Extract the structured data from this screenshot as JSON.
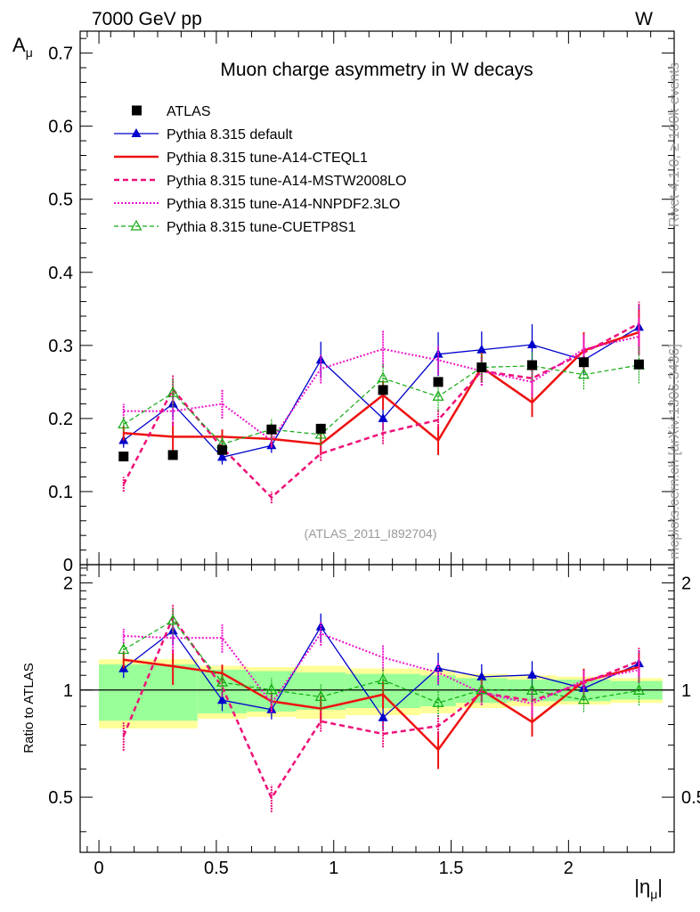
{
  "header": {
    "left": "7000 GeV pp",
    "right": "W"
  },
  "side_labels": {
    "rivet": "Rivet 4.1.0, ≥ 100k events",
    "mcplots": "mcplots.cern.ch [arXiv:1306.3436]"
  },
  "chart_data": {
    "type": "line",
    "title": "Muon charge asymmetry in W decays",
    "analysis_id": "(ATLAS_2011_I892704)",
    "ylabel": "A",
    "ylabel_sub": "μ",
    "xlabel": "|η",
    "xlabel_sub": "μ",
    "xlabel_tail": "|",
    "ratio_ylabel": "Ratio to ATLAS",
    "xlim": [
      -0.08,
      2.45
    ],
    "ylim": [
      0,
      0.73
    ],
    "ratio_ylim": [
      0.35,
      2.25
    ],
    "x_ticks": [
      {
        "value": 0,
        "label": "0"
      },
      {
        "value": 0.5,
        "label": "0.5"
      },
      {
        "value": 1,
        "label": "1"
      },
      {
        "value": 1.5,
        "label": "1.5"
      },
      {
        "value": 2,
        "label": "2"
      }
    ],
    "y_ticks": [
      {
        "value": 0,
        "label": "0"
      },
      {
        "value": 0.1,
        "label": "0.1"
      },
      {
        "value": 0.2,
        "label": "0.2"
      },
      {
        "value": 0.3,
        "label": "0.3"
      },
      {
        "value": 0.4,
        "label": "0.4"
      },
      {
        "value": 0.5,
        "label": "0.5"
      },
      {
        "value": 0.6,
        "label": "0.6"
      },
      {
        "value": 0.7,
        "label": "0.7"
      }
    ],
    "ratio_ticks": [
      {
        "value": 0.5,
        "label": "0.5"
      },
      {
        "value": 1,
        "label": "1"
      },
      {
        "value": 2,
        "label": "2"
      }
    ],
    "x": [
      0.105,
      0.315,
      0.525,
      0.735,
      0.945,
      1.21,
      1.445,
      1.63,
      1.845,
      2.065,
      2.3
    ],
    "bin_edges": [
      0,
      0.21,
      0.42,
      0.63,
      0.84,
      1.05,
      1.37,
      1.52,
      1.74,
      1.95,
      2.18,
      2.4
    ],
    "data": {
      "name": "ATLAS",
      "values": [
        0.148,
        0.15,
        0.157,
        0.185,
        0.186,
        0.239,
        0.25,
        0.27,
        0.273,
        0.277,
        0.274
      ],
      "band_inner": [
        0.18,
        0.18,
        0.14,
        0.13,
        0.12,
        0.11,
        0.1,
        0.08,
        0.07,
        0.07,
        0.06
      ],
      "band_outer": [
        0.22,
        0.22,
        0.17,
        0.16,
        0.17,
        0.15,
        0.14,
        0.11,
        0.1,
        0.09,
        0.08
      ]
    },
    "series": [
      {
        "name": "Pythia 8.315 default",
        "color": "#0000cc",
        "dash": "none",
        "width": 1.3,
        "marker": "triangle-filled",
        "values": [
          0.17,
          0.22,
          0.147,
          0.163,
          0.28,
          0.2,
          0.288,
          0.294,
          0.301,
          0.28,
          0.325
        ],
        "errors": [
          0.01,
          0.02,
          0.01,
          0.01,
          0.025,
          0.015,
          0.03,
          0.025,
          0.028,
          0.02,
          0.03
        ]
      },
      {
        "name": "Pythia 8.315 tune-A14-CTEQL1",
        "color": "#ee1111",
        "dash": "none",
        "width": 2.5,
        "marker": "none",
        "values": [
          0.18,
          0.175,
          0.175,
          0.172,
          0.165,
          0.232,
          0.17,
          0.27,
          0.222,
          0.293,
          0.318
        ],
        "errors": [
          0.01,
          0.02,
          0.01,
          0.01,
          0.015,
          0.02,
          0.02,
          0.02,
          0.02,
          0.025,
          0.03
        ]
      },
      {
        "name": "Pythia 8.315 tune-A14-MSTW2008LO",
        "color": "#ee1177",
        "dash": "6,4",
        "width": 2.5,
        "marker": "none",
        "values": [
          0.11,
          0.24,
          0.16,
          0.092,
          0.152,
          0.18,
          0.198,
          0.265,
          0.255,
          0.29,
          0.33
        ],
        "errors": [
          0.01,
          0.02,
          0.01,
          0.008,
          0.01,
          0.015,
          0.015,
          0.02,
          0.02,
          0.025,
          0.03
        ]
      },
      {
        "name": "Pythia 8.315 tune-A14-NNPDF2.3LO",
        "color": "#ee11cc",
        "dash": "2,2",
        "width": 2,
        "marker": "none",
        "values": [
          0.21,
          0.21,
          0.22,
          0.17,
          0.268,
          0.295,
          0.28,
          0.265,
          0.25,
          0.295,
          0.312
        ],
        "errors": [
          0.01,
          0.02,
          0.02,
          0.01,
          0.02,
          0.025,
          0.02,
          0.02,
          0.02,
          0.02,
          0.025
        ]
      },
      {
        "name": "Pythia 8.315 tune-CUETP8S1",
        "color": "#11aa11",
        "dash": "5,3",
        "width": 1.2,
        "marker": "triangle-open",
        "values": [
          0.192,
          0.235,
          0.165,
          0.185,
          0.178,
          0.255,
          0.23,
          0.27,
          0.272,
          0.26,
          0.273
        ],
        "errors": [
          0.01,
          0.02,
          0.01,
          0.015,
          0.015,
          0.02,
          0.02,
          0.02,
          0.02,
          0.02,
          0.025
        ]
      }
    ]
  }
}
